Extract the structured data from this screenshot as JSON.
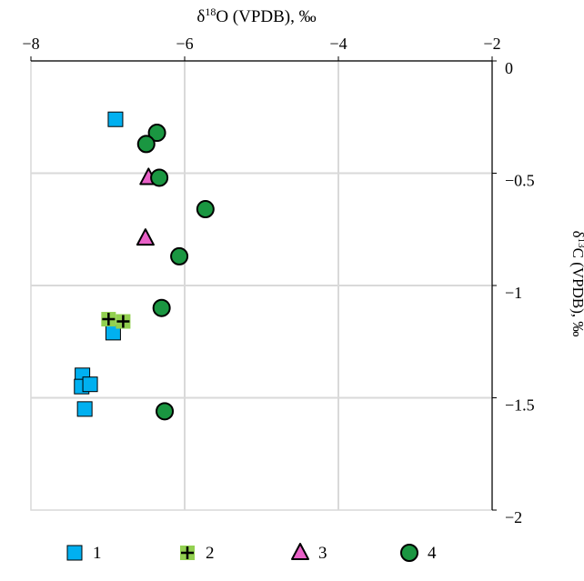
{
  "chart_data": {
    "type": "scatter",
    "xlabel": {
      "prefix": "δ",
      "sup": "18",
      "rest": "O (VPDB), ‰"
    },
    "ylabel": {
      "prefix": "δ",
      "sup": "13",
      "rest": "C (VPDB), ‰"
    },
    "xlim": [
      -8,
      -2
    ],
    "ylim": [
      -2,
      0
    ],
    "xticks": [
      -8,
      -6,
      -4,
      -2
    ],
    "yticks": [
      0,
      -0.5,
      -1,
      -1.5,
      -2
    ],
    "xtick_labels": [
      "−8",
      "−6",
      "−4",
      "−2"
    ],
    "ytick_labels": [
      "0",
      "−0.5",
      "−1",
      "−1.5",
      "−2"
    ],
    "x_axis_position": "top",
    "y_axis_position": "right",
    "grid": true,
    "legend_position": "bottom",
    "series": [
      {
        "name": "1",
        "marker": "square",
        "color": "#00b0f0",
        "points": [
          [
            -6.9,
            -0.26
          ],
          [
            -6.93,
            -1.21
          ],
          [
            -7.33,
            -1.4
          ],
          [
            -7.34,
            -1.45
          ],
          [
            -7.23,
            -1.44
          ],
          [
            -7.3,
            -1.55
          ]
        ]
      },
      {
        "name": "2",
        "marker": "plus",
        "color": "#92d050",
        "points": [
          [
            -6.99,
            -1.15
          ],
          [
            -6.8,
            -1.16
          ]
        ]
      },
      {
        "name": "3",
        "marker": "triangle",
        "color": "#e961c8",
        "points": [
          [
            -6.47,
            -0.52
          ],
          [
            -6.51,
            -0.79
          ]
        ]
      },
      {
        "name": "4",
        "marker": "circle",
        "color": "#1a9641",
        "points": [
          [
            -6.36,
            -0.32
          ],
          [
            -6.5,
            -0.37
          ],
          [
            -6.33,
            -0.52
          ],
          [
            -5.73,
            -0.66
          ],
          [
            -6.07,
            -0.87
          ],
          [
            -6.3,
            -1.1
          ],
          [
            -6.26,
            -1.56
          ]
        ]
      }
    ]
  }
}
